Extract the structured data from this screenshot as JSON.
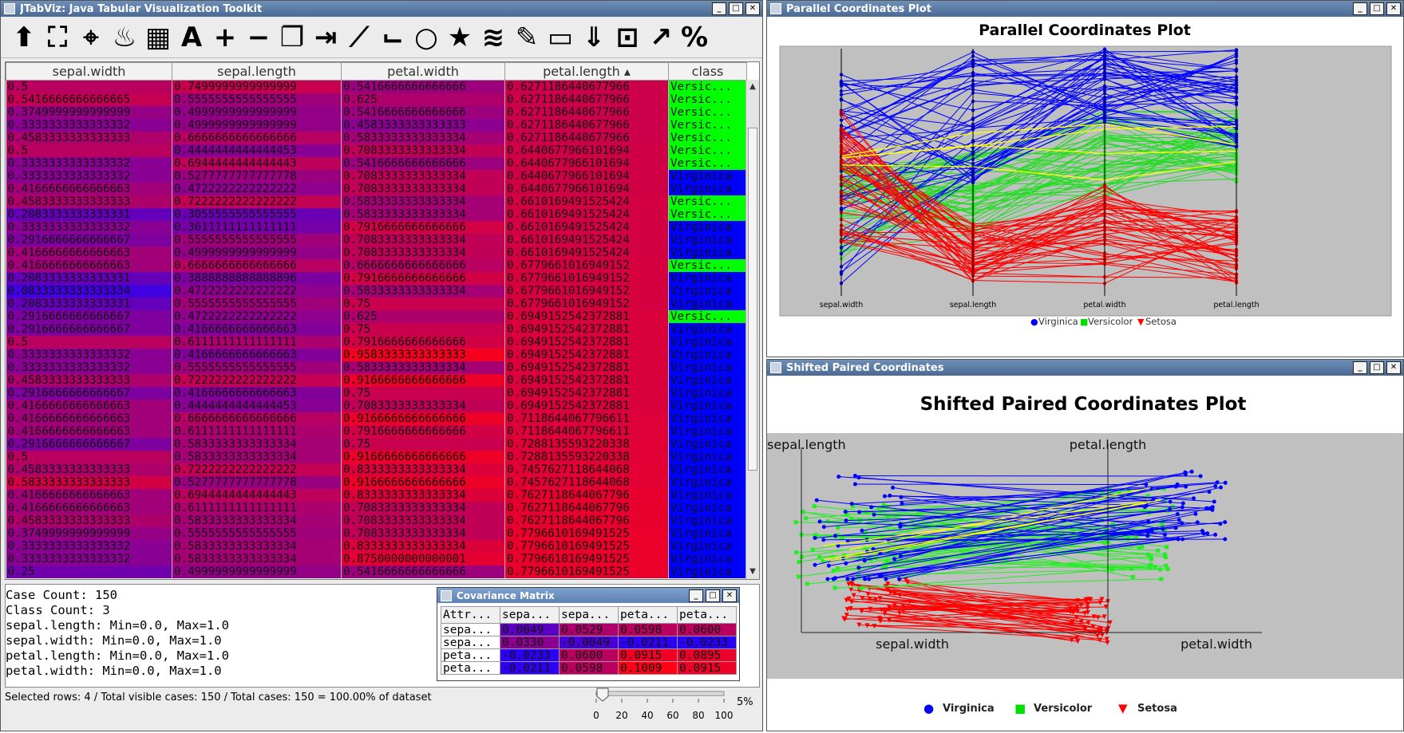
{
  "main_window": {
    "title": "JTabViz: Java Tabular Visualization Toolkit",
    "controls": [
      "_",
      "□",
      "✕"
    ],
    "toolbar_icons": [
      {
        "name": "upload-icon",
        "glyph": "⬆"
      },
      {
        "name": "select-frame-icon",
        "glyph": "⛶"
      },
      {
        "name": "location-pin-icon",
        "glyph": "⌖"
      },
      {
        "name": "flame-icon",
        "glyph": "♨"
      },
      {
        "name": "table-icon",
        "glyph": "▦"
      },
      {
        "name": "font-icon",
        "glyph": "A"
      },
      {
        "name": "plus-icon",
        "glyph": "+"
      },
      {
        "name": "minus-icon",
        "glyph": "−"
      },
      {
        "name": "copy-icon",
        "glyph": "❐"
      },
      {
        "name": "export-icon",
        "glyph": "⇥"
      },
      {
        "name": "line-chart-icon",
        "glyph": "⟋"
      },
      {
        "name": "step-icon",
        "glyph": "⌙"
      },
      {
        "name": "circle-icon",
        "glyph": "○"
      },
      {
        "name": "star-icon",
        "glyph": "★"
      },
      {
        "name": "layers-icon",
        "glyph": "≋"
      },
      {
        "name": "color-picker-icon",
        "glyph": "✎"
      },
      {
        "name": "ruler-icon",
        "glyph": "▭"
      },
      {
        "name": "double-chevron-down-icon",
        "glyph": "⇓"
      },
      {
        "name": "resize-icon",
        "glyph": "⊡"
      },
      {
        "name": "trend-chart-icon",
        "glyph": "↗"
      },
      {
        "name": "percent-icon",
        "glyph": "%"
      }
    ],
    "columns": [
      "sepal.width",
      "sepal.length",
      "petal.width",
      "petal.length ▴",
      "class"
    ],
    "rows": [
      [
        "0.5",
        "0.7499999999999999",
        "0.5416666666666666",
        "0.6271186440677966",
        "Versic..."
      ],
      [
        "0.5416666666666665",
        "0.5555555555555555",
        "0.625",
        "0.6271186440677966",
        "Versic..."
      ],
      [
        "0.3749999999999999",
        "0.4999999999999999",
        "0.5416666666666666",
        "0.6271186440677966",
        "Versic..."
      ],
      [
        "0.3333333333333332",
        "0.4999999999999999",
        "0.4583333333333333",
        "0.6271186440677966",
        "Versic..."
      ],
      [
        "0.4583333333333333",
        "0.6666666666666666",
        "0.5833333333333334",
        "0.6271186440677966",
        "Versic..."
      ],
      [
        "0.5",
        "0.4444444444444453",
        "0.7083333333333334",
        "0.6440677966101694",
        "Versic..."
      ],
      [
        "0.3333333333333332",
        "0.6944444444444443",
        "0.5416666666666666",
        "0.6440677966101694",
        "Versic..."
      ],
      [
        "0.3333333333333332",
        "0.5277777777777778",
        "0.7083333333333334",
        "0.6440677966101694",
        "Virginica"
      ],
      [
        "0.4166666666666663",
        "0.4722222222222222",
        "0.7083333333333334",
        "0.6440677966101694",
        "Virginica"
      ],
      [
        "0.4583333333333333",
        "0.7222222222222222",
        "0.5833333333333334",
        "0.6610169491525424",
        "Versic..."
      ],
      [
        "0.2083333333333331",
        "0.3055555555555555",
        "0.5833333333333334",
        "0.6610169491525424",
        "Versic..."
      ],
      [
        "0.3333333333333332",
        "0.3611111111111111",
        "0.7916666666666666",
        "0.6610169491525424",
        "Virginica"
      ],
      [
        "0.2916666666666667",
        "0.5555555555555555",
        "0.7083333333333334",
        "0.6610169491525424",
        "Virginica"
      ],
      [
        "0.4166666666666663",
        "0.4999999999999999",
        "0.7083333333333334",
        "0.6610169491525424",
        "Virginica"
      ],
      [
        "0.4166666666666663",
        "0.6666666666666666",
        "0.6666666666666666",
        "0.6779661016949152",
        "Versic..."
      ],
      [
        "0.2083333333333331",
        "0.3888888888888896",
        "0.7916666666666666",
        "0.6779661016949152",
        "Virginica"
      ],
      [
        "0.0833333333333334",
        "0.4722222222222222",
        "0.5833333333333334",
        "0.6779661016949152",
        "Virginica"
      ],
      [
        "0.2083333333333331",
        "0.5555555555555555",
        "0.75",
        "0.6779661016949152",
        "Virginica"
      ],
      [
        "0.2916666666666667",
        "0.4722222222222222",
        "0.625",
        "0.6949152542372881",
        "Versic..."
      ],
      [
        "0.2916666666666667",
        "0.4166666666666663",
        "0.75",
        "0.6949152542372881",
        "Virginica"
      ],
      [
        "0.5",
        "0.6111111111111111",
        "0.7916666666666666",
        "0.6949152542372881",
        "Virginica"
      ],
      [
        "0.3333333333333332",
        "0.4166666666666663",
        "0.9583333333333333",
        "0.6949152542372881",
        "Virginica"
      ],
      [
        "0.3333333333333332",
        "0.5555555555555555",
        "0.5833333333333334",
        "0.6949152542372881",
        "Virginica"
      ],
      [
        "0.4583333333333333",
        "0.7222222222222222",
        "0.9166666666666666",
        "0.6949152542372881",
        "Virginica"
      ],
      [
        "0.2916666666666667",
        "0.4166666666666663",
        "0.75",
        "0.6949152542372881",
        "Virginica"
      ],
      [
        "0.4166666666666663",
        "0.4444444444444453",
        "0.7083333333333334",
        "0.6949152542372881",
        "Virginica"
      ],
      [
        "0.4166666666666663",
        "0.6666666666666666",
        "0.9166666666666666",
        "0.7118644067796611",
        "Virginica"
      ],
      [
        "0.4166666666666663",
        "0.6111111111111111",
        "0.7916666666666666",
        "0.7118644067796611",
        "Virginica"
      ],
      [
        "0.2916666666666667",
        "0.5833333333333334",
        "0.75",
        "0.7288135593220338",
        "Virginica"
      ],
      [
        "0.5",
        "0.5833333333333334",
        "0.9166666666666666",
        "0.7288135593220338",
        "Virginica"
      ],
      [
        "0.4583333333333333",
        "0.7222222222222222",
        "0.8333333333333334",
        "0.7457627118644068",
        "Virginica"
      ],
      [
        "0.5833333333333333",
        "0.5277777777777778",
        "0.9166666666666666",
        "0.7457627118644068",
        "Virginica"
      ],
      [
        "0.4166666666666663",
        "0.6944444444444443",
        "0.8333333333333334",
        "0.7627118644067796",
        "Virginica"
      ],
      [
        "0.4166666666666663",
        "0.6111111111111111",
        "0.7083333333333334",
        "0.7627118644067796",
        "Virginica"
      ],
      [
        "0.4583333333333333",
        "0.5833333333333334",
        "0.7083333333333334",
        "0.7627118644067796",
        "Virginica"
      ],
      [
        "0.3749999999999999",
        "0.5555555555555555",
        "0.7083333333333334",
        "0.7796610169491525",
        "Virginica"
      ],
      [
        "0.3333333333333332",
        "0.5833333333333334",
        "0.8333333333333334",
        "0.7796610169491525",
        "Virginica"
      ],
      [
        "0.3333333333333332",
        "0.5833333333333334",
        "0.8750000000000001",
        "0.7796610169491525",
        "Virginica"
      ],
      [
        "0.25",
        "0.4999999999999999",
        "0.5416666666666666",
        "0.7796610169491525",
        "Virginica"
      ]
    ],
    "info_lines": [
      "Case Count: 150",
      "Class Count: 3",
      "sepal.length: Min=0.0, Max=1.0",
      "sepal.width: Min=0.0, Max=1.0",
      "petal.length: Min=0.0, Max=1.0",
      "petal.width: Min=0.0, Max=1.0"
    ],
    "status": "Selected rows: 4 / Total visible cases: 150 / Total cases: 150 = 100.00% of dataset",
    "slider": {
      "ticks": [
        "0",
        "20",
        "40",
        "60",
        "80",
        "100"
      ],
      "value_pct": 5,
      "label": "5%"
    }
  },
  "covariance": {
    "title": "Covariance Matrix",
    "headers": [
      "Attr...",
      "sepa...",
      "sepa...",
      "peta...",
      "peta..."
    ],
    "rows": [
      [
        "sepa...",
        "0.0049",
        "0.0529",
        "0.0598",
        "0.0600"
      ],
      [
        "sepa...",
        "0.0330",
        "-0.0049",
        "-0.0211",
        "-0.0233"
      ],
      [
        "peta...",
        "-0.0233",
        "0.0600",
        "0.0915",
        "0.0895"
      ],
      [
        "peta...",
        "-0.0211",
        "0.0598",
        "0.1009",
        "0.0915"
      ]
    ]
  },
  "parallel": {
    "window_title": "Parallel Coordinates Plot",
    "plot_title": "Parallel Coordinates Plot",
    "axes": [
      "sepal.width",
      "sepal.length",
      "petal.width",
      "petal.length"
    ],
    "legend": [
      {
        "name": "Virginica",
        "color": "#0000ff",
        "marker": "●"
      },
      {
        "name": "Versicolor",
        "color": "#00dd00",
        "marker": "■"
      },
      {
        "name": "Setosa",
        "color": "#ff0000",
        "marker": "▼"
      }
    ]
  },
  "shifted": {
    "window_title": "Shifted Paired Coordinates",
    "plot_title": "Shifted Paired Coordinates Plot",
    "labels": {
      "top_left": "sepal.length",
      "top_right": "petal.length",
      "bottom_left": "sepal.width",
      "bottom_right": "petal.width"
    },
    "legend": [
      {
        "name": "Virginica",
        "color": "#0000ff",
        "marker": "●"
      },
      {
        "name": "Versicolor",
        "color": "#00dd00",
        "marker": "■"
      },
      {
        "name": "Setosa",
        "color": "#ff0000",
        "marker": "▼"
      }
    ]
  },
  "colors": {
    "virginica": "#0000ff",
    "versicolor": "#00ff00",
    "setosa": "#ff0000",
    "highlight": "#ffff00",
    "plot_bg": "#c0c0c0"
  }
}
